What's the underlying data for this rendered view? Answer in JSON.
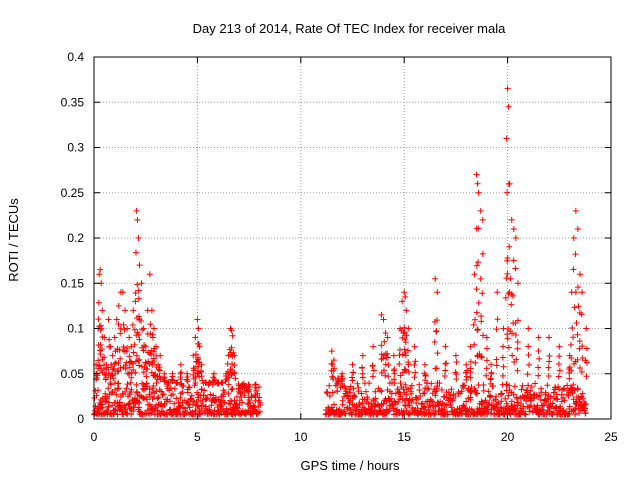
{
  "chart_data": {
    "type": "scatter",
    "title": "Day 213 of 2014, Rate Of TEC Index for receiver mala",
    "xlabel": "GPS time / hours",
    "ylabel": "ROTI / TECUs",
    "xlim": [
      0,
      25
    ],
    "ylim": [
      0,
      0.4
    ],
    "xticks": [
      0,
      5,
      10,
      15,
      20,
      25
    ],
    "xtick_labels": [
      "0",
      "5",
      "10",
      "15",
      "20",
      "25"
    ],
    "yticks": [
      0,
      0.05,
      0.1,
      0.15,
      0.2,
      0.25,
      0.3,
      0.35,
      0.4
    ],
    "ytick_labels": [
      "0",
      "0.05",
      "0.1",
      "0.15",
      "0.2",
      "0.25",
      "0.3",
      "0.35",
      "0.4"
    ],
    "grid": true,
    "marker": "+",
    "color": "#ff0000",
    "series": [
      {
        "name": "ROTI",
        "segments": [
          [
            0.0,
            8.0
          ],
          [
            11.2,
            23.8
          ]
        ],
        "x": [
          0.1,
          0.2,
          0.25,
          0.3,
          0.35,
          0.4,
          0.5,
          0.6,
          0.7,
          0.8,
          0.9,
          1.0,
          1.1,
          1.2,
          1.3,
          1.4,
          1.5,
          1.6,
          1.7,
          1.8,
          1.9,
          2.0,
          2.05,
          2.1,
          2.15,
          2.2,
          2.3,
          2.4,
          2.5,
          2.6,
          2.7,
          2.8,
          2.85,
          2.9,
          3.0,
          3.1,
          3.2,
          3.4,
          3.6,
          3.8,
          4.0,
          4.2,
          4.5,
          4.8,
          4.9,
          5.0,
          5.05,
          5.1,
          5.2,
          5.4,
          5.6,
          5.8,
          6.0,
          6.2,
          6.4,
          6.5,
          6.6,
          6.65,
          6.7,
          6.8,
          7.0,
          7.2,
          7.5,
          7.8,
          11.5,
          11.6,
          11.8,
          12.0,
          12.5,
          13.0,
          13.5,
          13.9,
          14.0,
          14.1,
          14.2,
          14.5,
          14.8,
          14.9,
          15.0,
          15.05,
          15.1,
          15.2,
          15.5,
          16.0,
          16.5,
          16.6,
          17.0,
          17.5,
          18.0,
          18.2,
          18.4,
          18.5,
          18.55,
          18.6,
          18.7,
          18.8,
          19.0,
          19.2,
          19.5,
          19.8,
          19.95,
          20.0,
          20.05,
          20.1,
          20.2,
          20.3,
          20.4,
          20.5,
          21.0,
          21.5,
          22.0,
          22.5,
          23.0,
          23.1,
          23.2,
          23.3,
          23.4,
          23.5,
          23.6,
          23.8
        ],
        "y": [
          0.06,
          0.1,
          0.16,
          0.165,
          0.15,
          0.12,
          0.09,
          0.06,
          0.11,
          0.08,
          0.07,
          0.09,
          0.11,
          0.125,
          0.14,
          0.14,
          0.12,
          0.1,
          0.09,
          0.08,
          0.12,
          0.13,
          0.23,
          0.22,
          0.2,
          0.17,
          0.15,
          0.1,
          0.08,
          0.12,
          0.16,
          0.12,
          0.09,
          0.1,
          0.08,
          0.06,
          0.07,
          0.05,
          0.04,
          0.05,
          0.04,
          0.06,
          0.05,
          0.07,
          0.09,
          0.11,
          0.1,
          0.08,
          0.06,
          0.04,
          0.04,
          0.05,
          0.04,
          0.04,
          0.05,
          0.07,
          0.1,
          0.098,
          0.092,
          0.07,
          0.03,
          0.03,
          0.03,
          0.02,
          0.075,
          0.065,
          0.045,
          0.05,
          0.06,
          0.07,
          0.08,
          0.115,
          0.11,
          0.095,
          0.09,
          0.07,
          0.1,
          0.13,
          0.14,
          0.135,
          0.12,
          0.1,
          0.08,
          0.06,
          0.155,
          0.14,
          0.08,
          0.07,
          0.06,
          0.08,
          0.16,
          0.27,
          0.26,
          0.25,
          0.23,
          0.22,
          0.09,
          0.06,
          0.14,
          0.1,
          0.31,
          0.365,
          0.345,
          0.26,
          0.22,
          0.21,
          0.2,
          0.15,
          0.1,
          0.09,
          0.09,
          0.08,
          0.07,
          0.14,
          0.2,
          0.23,
          0.21,
          0.16,
          0.14,
          0.1
        ],
        "baseline_range": [
          0.005,
          0.04
        ]
      }
    ]
  }
}
